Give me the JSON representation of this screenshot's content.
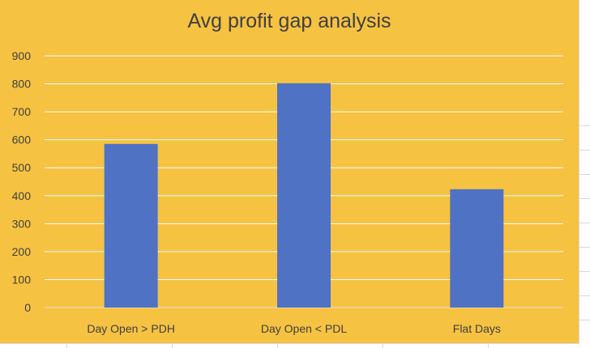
{
  "chart_data": {
    "type": "bar",
    "title": "Avg profit gap analysis",
    "categories": [
      "Day Open > PDH",
      "Day Open < PDL",
      "Flat Days"
    ],
    "values": [
      585,
      802,
      423
    ],
    "ylim": [
      0,
      900
    ],
    "yticks": [
      "0",
      "100",
      "200",
      "300",
      "400",
      "500",
      "600",
      "700",
      "800",
      "900"
    ],
    "xlabel": "",
    "ylabel": "",
    "grid": true,
    "legend": "none",
    "colors": {
      "background": "#F6C242",
      "bar": "#4F72C4",
      "grid": "#FFFFFF",
      "text": "#404040"
    }
  }
}
